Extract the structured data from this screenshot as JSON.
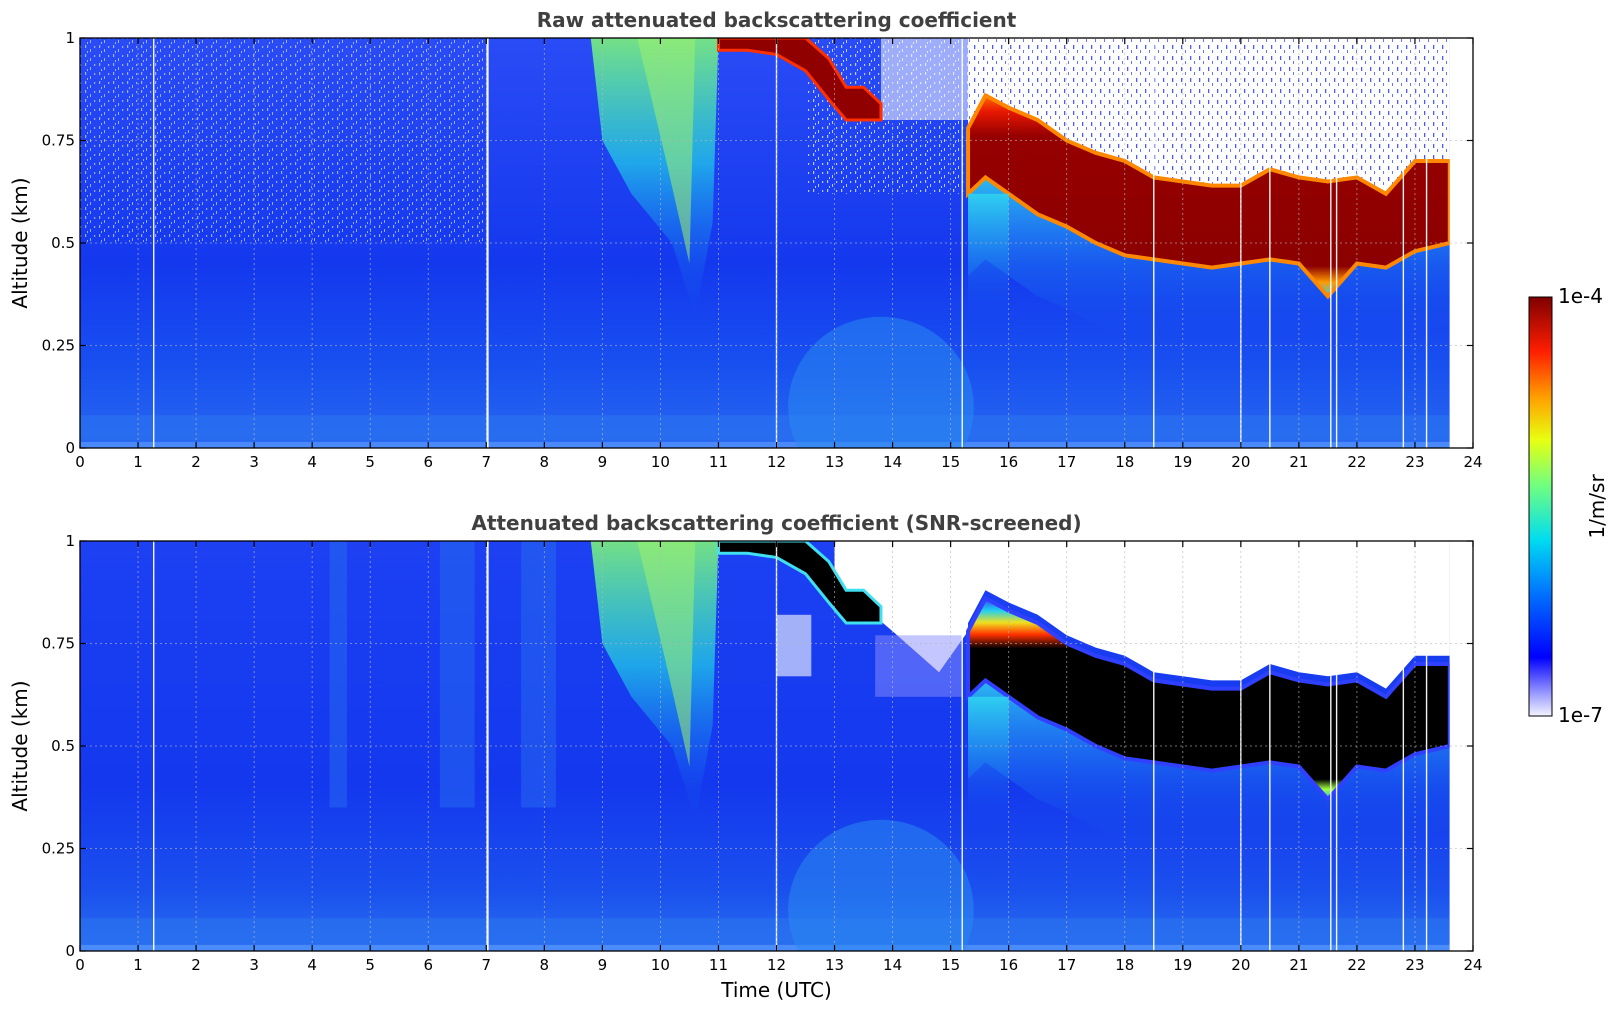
{
  "chart_data": [
    {
      "type": "heatmap",
      "title": "Raw attenuated backscattering coefficient",
      "xlabel": "",
      "ylabel": "Altitude (km)",
      "xlim": [
        0,
        24
      ],
      "ylim": [
        0,
        1
      ],
      "x_ticks": [
        "0",
        "1",
        "2",
        "3",
        "4",
        "5",
        "6",
        "7",
        "8",
        "9",
        "10",
        "11",
        "12",
        "13",
        "14",
        "15",
        "16",
        "17",
        "18",
        "19",
        "20",
        "21",
        "22",
        "23",
        "24"
      ],
      "y_ticks": [
        "0",
        "0.25",
        "0.5",
        "0.75",
        "1"
      ],
      "grid": true,
      "data_end_hour": 23.6,
      "colorbar": {
        "label": "1/m/sr",
        "min_label": "1e-7",
        "max_label": "1e-4",
        "scale": "log"
      },
      "features": {
        "cloud_layer": {
          "times": [
            15.3,
            15.6,
            16,
            16.5,
            17,
            17.5,
            18,
            18.5,
            19,
            19.5,
            20,
            20.5,
            21,
            21.5,
            22,
            22.5,
            23,
            23.6
          ],
          "top_km": [
            0.78,
            0.86,
            0.83,
            0.8,
            0.75,
            0.72,
            0.7,
            0.66,
            0.65,
            0.64,
            0.64,
            0.68,
            0.66,
            0.65,
            0.66,
            0.62,
            0.7,
            0.7
          ],
          "base_km": [
            0.62,
            0.66,
            0.62,
            0.57,
            0.54,
            0.5,
            0.47,
            0.46,
            0.45,
            0.44,
            0.45,
            0.46,
            0.45,
            0.37,
            0.45,
            0.44,
            0.48,
            0.5
          ]
        },
        "upper_cloud": {
          "times": [
            11,
            11.5,
            12,
            12.5,
            12.9,
            13.2,
            13.5,
            13.8
          ],
          "top_km": [
            1.0,
            1.0,
            1.0,
            1.0,
            0.95,
            0.88,
            0.88,
            0.84
          ],
          "base_km": [
            0.97,
            0.97,
            0.96,
            0.92,
            0.85,
            0.8,
            0.8,
            0.8
          ]
        }
      }
    },
    {
      "type": "heatmap",
      "title": "Attenuated backscattering coefficient (SNR-screened)",
      "xlabel": "Time (UTC)",
      "ylabel": "Altitude (km)",
      "xlim": [
        0,
        24
      ],
      "ylim": [
        0,
        1
      ],
      "x_ticks": [
        "0",
        "1",
        "2",
        "3",
        "4",
        "5",
        "6",
        "7",
        "8",
        "9",
        "10",
        "11",
        "12",
        "13",
        "14",
        "15",
        "16",
        "17",
        "18",
        "19",
        "20",
        "21",
        "22",
        "23",
        "24"
      ],
      "y_ticks": [
        "0",
        "0.25",
        "0.5",
        "0.75",
        "1"
      ],
      "grid": true,
      "data_end_hour": 23.6
    }
  ],
  "colors": {
    "background_blue": "#1a3cf0",
    "aerosol_cyan": "#00b8f0",
    "plume_green": "#6ae67a",
    "cloud_red": "#990000",
    "cloud_black": "#000000"
  }
}
